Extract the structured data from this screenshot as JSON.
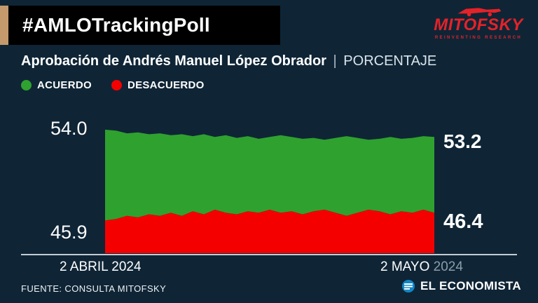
{
  "header": {
    "title": "#AMLOTrackingPoll",
    "logo": {
      "name": "MITOFSKY",
      "tagline": "REINVENTING RESEARCH",
      "color": "#e52228"
    }
  },
  "subtitle": {
    "main": "Aprobación de Andrés Manuel López Obrador",
    "separator": "|",
    "unit": "PORCENTAJE"
  },
  "legend": [
    {
      "label": "ACUERDO",
      "color": "#2fa12f"
    },
    {
      "label": "DESACUERDO",
      "color": "#f40000"
    }
  ],
  "chart_data": {
    "type": "area",
    "stacked": true,
    "title": "Aprobación de Andrés Manuel López Obrador (porcentaje)",
    "x_start_label": "2 ABRIL 2024",
    "x_end_label": "2 MAYO 2024",
    "labels": {
      "left_top": "54.0",
      "left_bottom": "45.9",
      "right_top": "53.2",
      "right_bottom": "46.4"
    },
    "series": [
      {
        "name": "ACUERDO",
        "color": "#2fa12f",
        "start_value": 54.0,
        "end_value": 53.2,
        "values": [
          54.0,
          53.9,
          53.6,
          53.7,
          53.5,
          53.6,
          53.4,
          53.5,
          53.3,
          53.5,
          53.2,
          53.4,
          53.1,
          53.3,
          53.0,
          53.2,
          53.4,
          53.2,
          53.0,
          53.1,
          52.9,
          53.1,
          53.3,
          53.1,
          52.9,
          53.0,
          53.2,
          53.0,
          53.1,
          53.3,
          53.2
        ]
      },
      {
        "name": "DESACUERDO",
        "color": "#f40000",
        "start_value": 45.9,
        "end_value": 46.4,
        "values": [
          45.9,
          46.0,
          46.2,
          46.1,
          46.3,
          46.2,
          46.4,
          46.2,
          46.5,
          46.3,
          46.6,
          46.4,
          46.3,
          46.5,
          46.4,
          46.6,
          46.4,
          46.5,
          46.3,
          46.5,
          46.6,
          46.4,
          46.2,
          46.4,
          46.6,
          46.5,
          46.3,
          46.5,
          46.4,
          46.6,
          46.4
        ]
      }
    ]
  },
  "axis": {
    "left_label": "2 ABRIL 2024",
    "right_label_main": "2 MAYO ",
    "right_label_year": "2024"
  },
  "footer": {
    "source": "FUENTE: CONSULTA MITOFSKY",
    "brand": "EL ECONOMISTA"
  },
  "colors": {
    "background": "#0f2536",
    "header_bg": "#000000",
    "accent_tan": "#c49a6c",
    "axis_line": "#c3ccd3"
  }
}
